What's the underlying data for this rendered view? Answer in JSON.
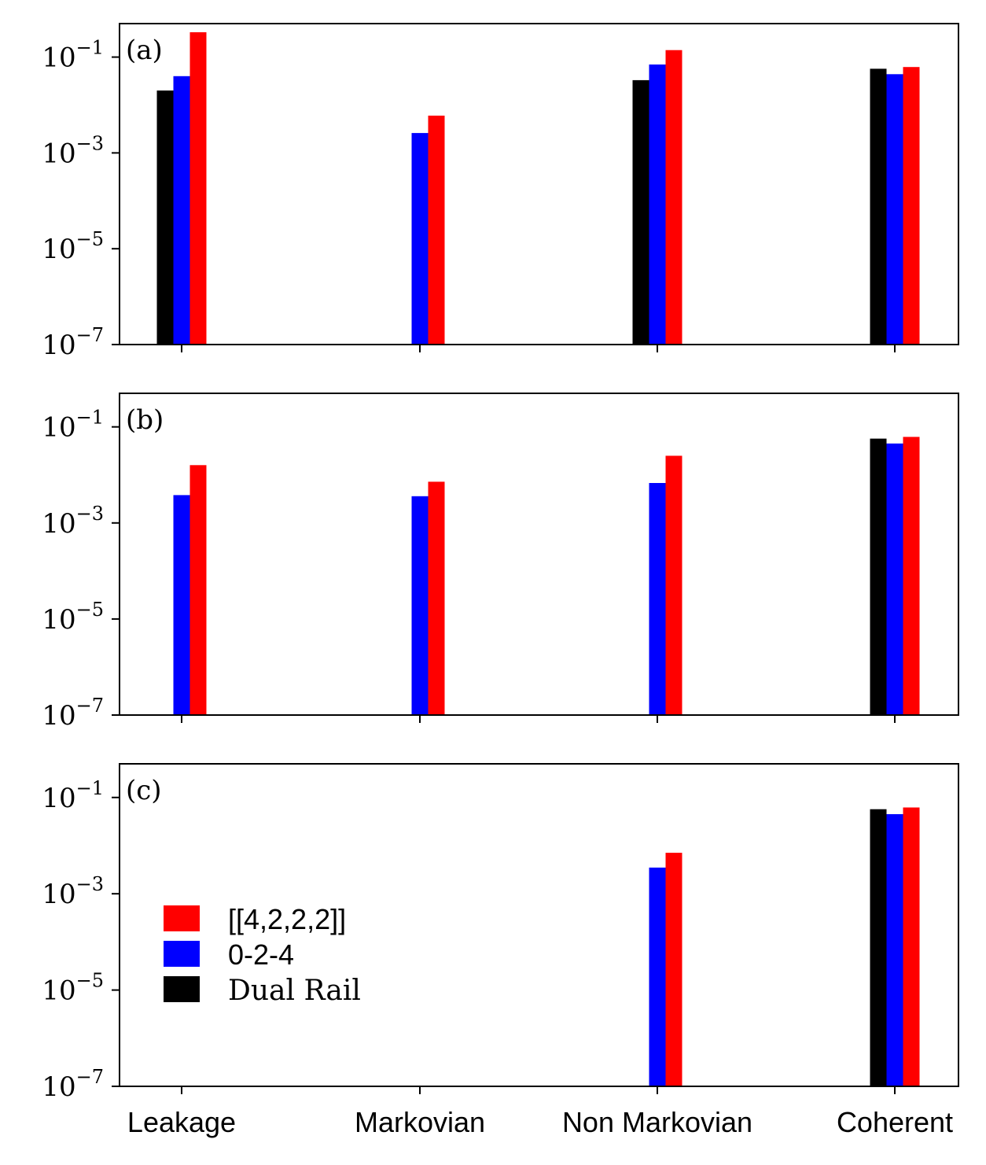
{
  "chart_data": {
    "type": "bar",
    "yscale": "log",
    "ylim": [
      1e-07,
      0.5
    ],
    "yticks": [
      {
        "base": "10",
        "exp": "−1",
        "value": 0.1
      },
      {
        "base": "10",
        "exp": "−3",
        "value": 0.001
      },
      {
        "base": "10",
        "exp": "−5",
        "value": 1e-05
      },
      {
        "base": "10",
        "exp": "−7",
        "value": 1e-07
      }
    ],
    "categories": [
      "Leakage",
      "Markovian",
      "Non Markovian",
      "Coherent"
    ],
    "legend": {
      "placement": "center-left of panel (c)",
      "entries": [
        {
          "label": "[[4,2,2,2]]",
          "color": "#ff0000"
        },
        {
          "label": "0-2-4",
          "color": "#0000ff"
        },
        {
          "label": "Dual Rail",
          "color": "#000000"
        }
      ]
    },
    "series_order": [
      "Dual Rail",
      "0-2-4",
      "[[4,2,2,2]]"
    ],
    "series_colors": {
      "Dual Rail": "#000000",
      "0-2-4": "#0000ff",
      "[[4,2,2,2]]": "#ff0000"
    },
    "panels": [
      {
        "label": "(a)",
        "values": {
          "Dual Rail": [
            0.02,
            null,
            0.033,
            0.057
          ],
          "0-2-4": [
            0.04,
            0.0026,
            0.07,
            0.044
          ],
          "[[4,2,2,2]]": [
            0.33,
            0.006,
            0.14,
            0.062
          ]
        }
      },
      {
        "label": "(b)",
        "values": {
          "Dual Rail": [
            null,
            null,
            null,
            0.057
          ],
          "0-2-4": [
            0.0038,
            0.0036,
            0.0068,
            0.045
          ],
          "[[4,2,2,2]]": [
            0.016,
            0.0072,
            0.025,
            0.062
          ]
        }
      },
      {
        "label": "(c)",
        "values": {
          "Dual Rail": [
            null,
            null,
            null,
            0.057
          ],
          "0-2-4": [
            null,
            null,
            0.0035,
            0.045
          ],
          "[[4,2,2,2]]": [
            null,
            null,
            0.0071,
            0.062
          ]
        }
      }
    ]
  }
}
